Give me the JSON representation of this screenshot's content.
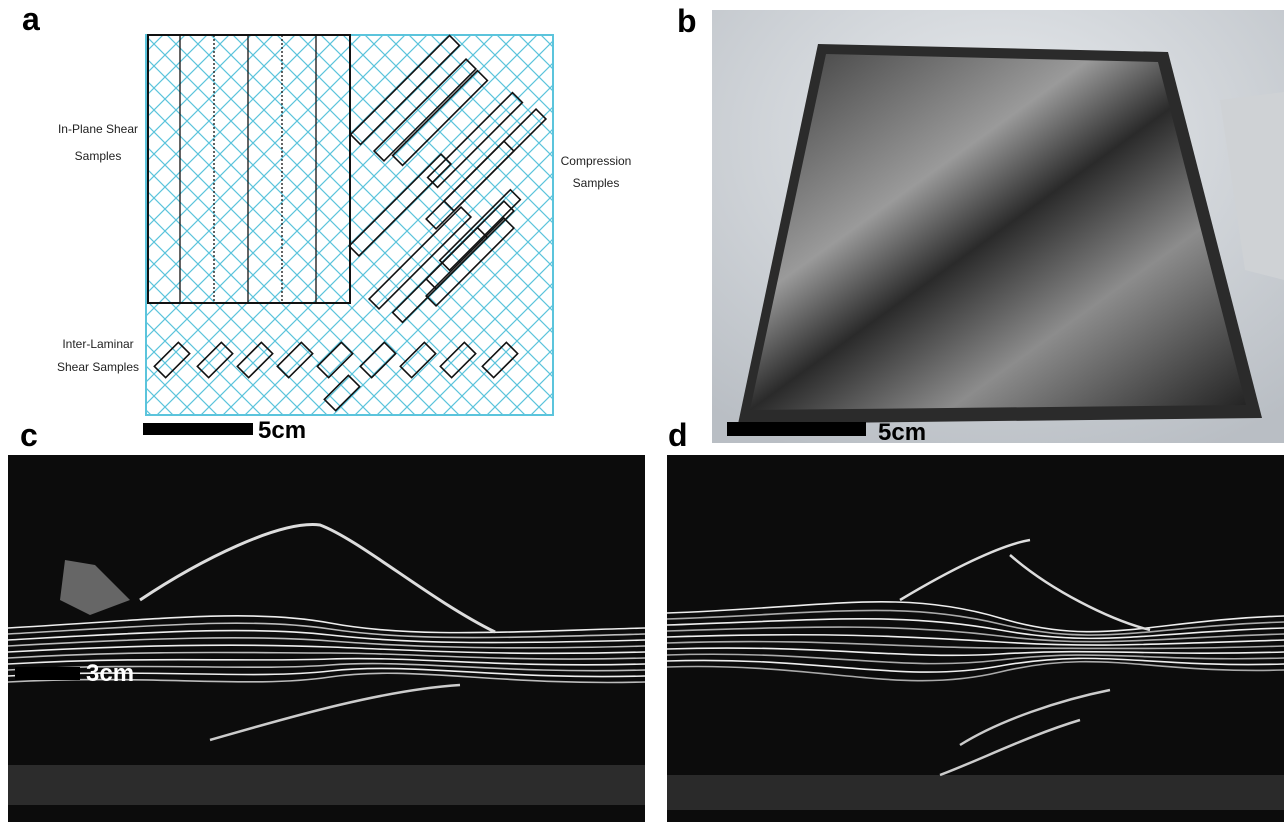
{
  "panels": {
    "a": {
      "label": "a",
      "in_plane": [
        "In-Plane Shear",
        "Samples"
      ],
      "compression": [
        "Compression",
        "Samples"
      ],
      "inter_laminar": [
        "Inter-Laminar",
        "Shear Samples"
      ],
      "scale": "5cm"
    },
    "b": {
      "label": "b",
      "scale": "5cm"
    },
    "c": {
      "label": "c",
      "scale": "3cm"
    },
    "d": {
      "label": "d"
    }
  }
}
